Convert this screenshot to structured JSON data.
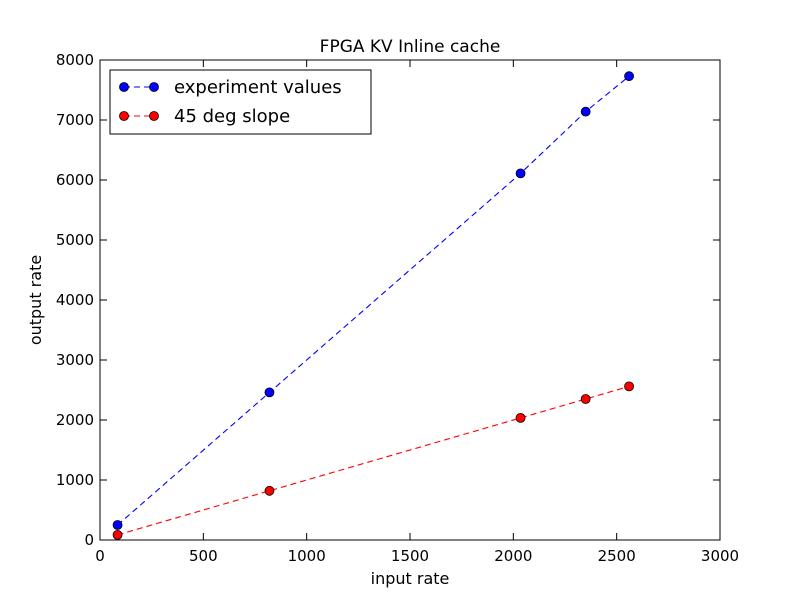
{
  "chart_data": {
    "type": "line",
    "title": "FPGA KV Inline cache",
    "xlabel": "input rate",
    "ylabel": "output rate",
    "xlim": [
      0,
      3000
    ],
    "ylim": [
      0,
      8000
    ],
    "xticks": [
      0,
      500,
      1000,
      1500,
      2000,
      2500,
      3000
    ],
    "yticks": [
      0,
      1000,
      2000,
      3000,
      4000,
      5000,
      6000,
      7000,
      8000
    ],
    "grid": false,
    "legend_position": "top-left",
    "series": [
      {
        "name": "experiment values",
        "color": "#0000ff",
        "line_style": "dashed",
        "marker": "circle",
        "points": [
          {
            "x": 85,
            "y": 250
          },
          {
            "x": 820,
            "y": 2460
          },
          {
            "x": 2035,
            "y": 6110
          },
          {
            "x": 2350,
            "y": 7140
          },
          {
            "x": 2560,
            "y": 7730
          }
        ]
      },
      {
        "name": "45 deg slope",
        "color": "#ff0000",
        "line_style": "dashed",
        "marker": "circle",
        "points": [
          {
            "x": 85,
            "y": 85
          },
          {
            "x": 820,
            "y": 820
          },
          {
            "x": 2035,
            "y": 2035
          },
          {
            "x": 2350,
            "y": 2350
          },
          {
            "x": 2560,
            "y": 2560
          }
        ]
      }
    ]
  }
}
